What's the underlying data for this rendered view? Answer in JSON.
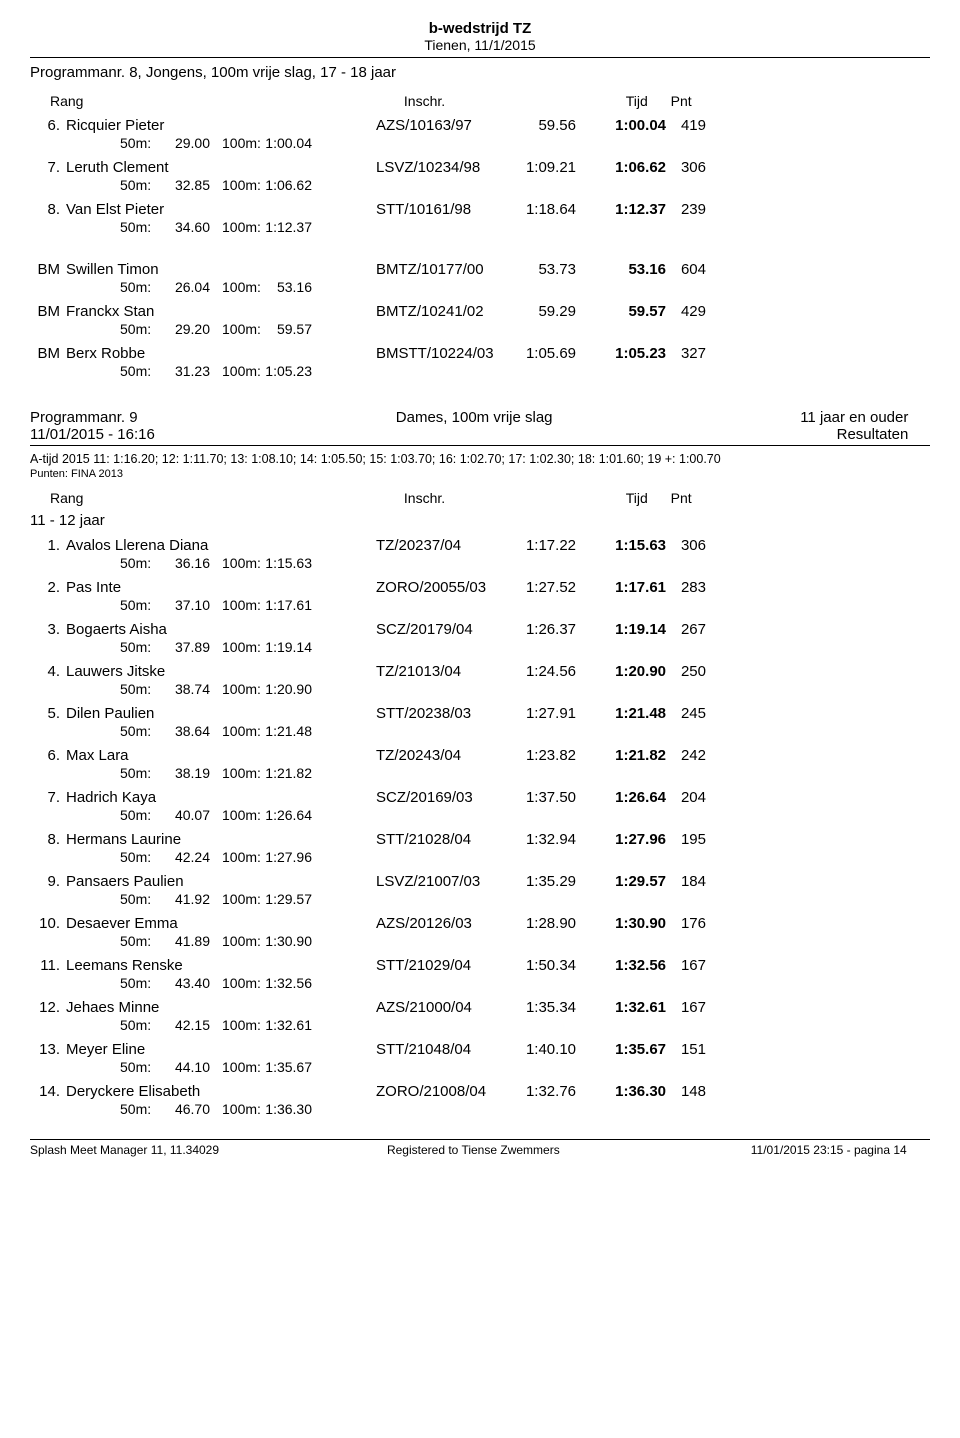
{
  "header": {
    "title": "b-wedstrijd TZ",
    "subtitle": "Tienen, 11/1/2015"
  },
  "program8": {
    "title": "Programmanr. 8, Jongens, 100m vrije slag, 17 - 18 jaar",
    "col_rang": "Rang",
    "col_inschr": "Inschr.",
    "col_tijd": "Tijd",
    "col_pnt": "Pnt",
    "rows": [
      {
        "rank": "6.",
        "name": "Ricquier Pieter",
        "code": "AZS/10163/97",
        "t1": "59.56",
        "t2": "1:00.04",
        "pts": "419",
        "s50": "29.00",
        "s100": "1:00.04"
      },
      {
        "rank": "7.",
        "name": "Leruth Clement",
        "code": "LSVZ/10234/98",
        "t1": "1:09.21",
        "t2": "1:06.62",
        "pts": "306",
        "s50": "32.85",
        "s100": "1:06.62"
      },
      {
        "rank": "8.",
        "name": "Van Elst Pieter",
        "code": "STT/10161/98",
        "t1": "1:18.64",
        "t2": "1:12.37",
        "pts": "239",
        "s50": "34.60",
        "s100": "1:12.37"
      }
    ],
    "bm_rows": [
      {
        "rank": "BM",
        "name": "Swillen Timon",
        "code": "BMTZ/10177/00",
        "t1": "53.73",
        "t2": "53.16",
        "pts": "604",
        "s50": "26.04",
        "s100": "53.16"
      },
      {
        "rank": "BM",
        "name": "Franckx Stan",
        "code": "BMTZ/10241/02",
        "t1": "59.29",
        "t2": "59.57",
        "pts": "429",
        "s50": "29.20",
        "s100": "59.57"
      },
      {
        "rank": "BM",
        "name": "Berx Robbe",
        "code": "BMSTT/10224/03",
        "t1": "1:05.69",
        "t2": "1:05.23",
        "pts": "327",
        "s50": "31.23",
        "s100": "1:05.23"
      }
    ]
  },
  "program9": {
    "left_top": "Programmanr. 9",
    "mid_top": "Dames, 100m vrije slag",
    "right_top": "11 jaar en ouder",
    "left_sub": "11/01/2015 - 16:16",
    "right_sub": "Resultaten",
    "a_tijd": "A-tijd 2015 11: 1:16.20;  12: 1:11.70;  13: 1:08.10;  14: 1:05.50;  15: 1:03.70;  16: 1:02.70;  17: 1:02.30;  18: 1:01.60;  19 +: 1:00.70",
    "punten": "Punten: FINA 2013",
    "col_rang": "Rang",
    "col_inschr": "Inschr.",
    "col_tijd": "Tijd",
    "col_pnt": "Pnt",
    "age_group": "11 - 12 jaar",
    "rows": [
      {
        "rank": "1.",
        "name": "Avalos Llerena Diana",
        "code": "TZ/20237/04",
        "t1": "1:17.22",
        "t2": "1:15.63",
        "pts": "306",
        "s50": "36.16",
        "s100": "1:15.63"
      },
      {
        "rank": "2.",
        "name": "Pas Inte",
        "code": "ZORO/20055/03",
        "t1": "1:27.52",
        "t2": "1:17.61",
        "pts": "283",
        "s50": "37.10",
        "s100": "1:17.61"
      },
      {
        "rank": "3.",
        "name": "Bogaerts Aisha",
        "code": "SCZ/20179/04",
        "t1": "1:26.37",
        "t2": "1:19.14",
        "pts": "267",
        "s50": "37.89",
        "s100": "1:19.14"
      },
      {
        "rank": "4.",
        "name": "Lauwers Jitske",
        "code": "TZ/21013/04",
        "t1": "1:24.56",
        "t2": "1:20.90",
        "pts": "250",
        "s50": "38.74",
        "s100": "1:20.90"
      },
      {
        "rank": "5.",
        "name": "Dilen Paulien",
        "code": "STT/20238/03",
        "t1": "1:27.91",
        "t2": "1:21.48",
        "pts": "245",
        "s50": "38.64",
        "s100": "1:21.48"
      },
      {
        "rank": "6.",
        "name": "Max Lara",
        "code": "TZ/20243/04",
        "t1": "1:23.82",
        "t2": "1:21.82",
        "pts": "242",
        "s50": "38.19",
        "s100": "1:21.82"
      },
      {
        "rank": "7.",
        "name": "Hadrich Kaya",
        "code": "SCZ/20169/03",
        "t1": "1:37.50",
        "t2": "1:26.64",
        "pts": "204",
        "s50": "40.07",
        "s100": "1:26.64"
      },
      {
        "rank": "8.",
        "name": "Hermans Laurine",
        "code": "STT/21028/04",
        "t1": "1:32.94",
        "t2": "1:27.96",
        "pts": "195",
        "s50": "42.24",
        "s100": "1:27.96"
      },
      {
        "rank": "9.",
        "name": "Pansaers Paulien",
        "code": "LSVZ/21007/03",
        "t1": "1:35.29",
        "t2": "1:29.57",
        "pts": "184",
        "s50": "41.92",
        "s100": "1:29.57"
      },
      {
        "rank": "10.",
        "name": "Desaever Emma",
        "code": "AZS/20126/03",
        "t1": "1:28.90",
        "t2": "1:30.90",
        "pts": "176",
        "s50": "41.89",
        "s100": "1:30.90"
      },
      {
        "rank": "11.",
        "name": "Leemans Renske",
        "code": "STT/21029/04",
        "t1": "1:50.34",
        "t2": "1:32.56",
        "pts": "167",
        "s50": "43.40",
        "s100": "1:32.56"
      },
      {
        "rank": "12.",
        "name": "Jehaes Minne",
        "code": "AZS/21000/04",
        "t1": "1:35.34",
        "t2": "1:32.61",
        "pts": "167",
        "s50": "42.15",
        "s100": "1:32.61"
      },
      {
        "rank": "13.",
        "name": "Meyer Eline",
        "code": "STT/21048/04",
        "t1": "1:40.10",
        "t2": "1:35.67",
        "pts": "151",
        "s50": "44.10",
        "s100": "1:35.67"
      },
      {
        "rank": "14.",
        "name": "Deryckere Elisabeth",
        "code": "ZORO/21008/04",
        "t1": "1:32.76",
        "t2": "1:36.30",
        "pts": "148",
        "s50": "46.70",
        "s100": "1:36.30"
      }
    ]
  },
  "splits": {
    "l50": "50m:",
    "l100": "100m:"
  },
  "footer": {
    "left": "Splash Meet Manager 11, 11.34029",
    "mid": "Registered to Tiense Zwemmers",
    "right": "11/01/2015 23:15 - pagina 14"
  }
}
